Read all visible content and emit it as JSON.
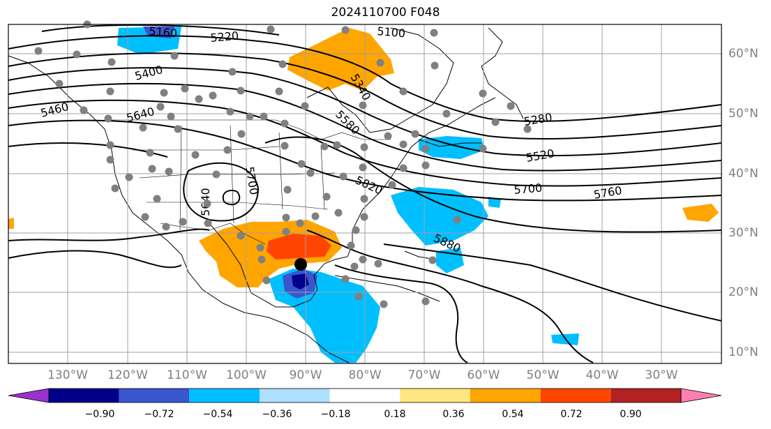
{
  "title": "2024110700 F048",
  "lon_labels": [
    "130°W",
    "120°W",
    "110°W",
    "100°W",
    "90°W",
    "80°W",
    "70°W",
    "60°W",
    "50°W",
    "40°W",
    "30°W"
  ],
  "lat_labels": [
    "60°N",
    "50°N",
    "40°N",
    "30°N",
    "20°N",
    "10°N"
  ],
  "contour_labels": [
    "5160",
    "5220",
    "5100",
    "5400",
    "5340",
    "5460",
    "5640",
    "5580",
    "5280",
    "5520",
    "5700",
    "5640",
    "5820",
    "5700",
    "5760",
    "5880"
  ],
  "colorbar": {
    "ticks": [
      "−0.90",
      "−0.72",
      "−0.54",
      "−0.36",
      "−0.18",
      "0.18",
      "0.36",
      "0.54",
      "0.72",
      "0.90"
    ],
    "colors": [
      "#9932CC",
      "#00008B",
      "#3A56CF",
      "#00BFFF",
      "#ADDFFF",
      "#FFFFFF",
      "#FFE680",
      "#FFA500",
      "#FF4500",
      "#B22222",
      "#FF80B0"
    ]
  },
  "colors": {
    "land_outline": "#000000",
    "grid": "#a0a0a0",
    "station_dot": "#808080",
    "storm_center": "#000000"
  }
}
